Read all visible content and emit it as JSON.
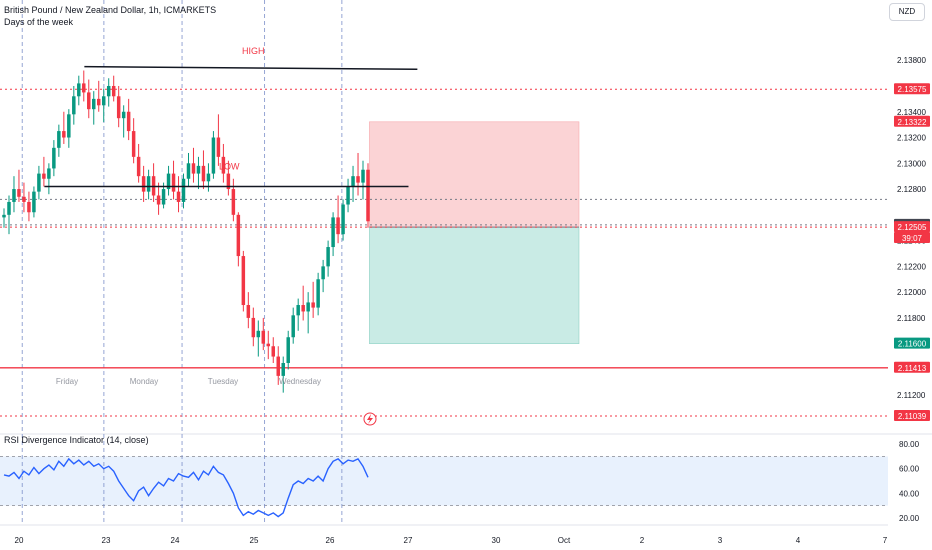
{
  "header": {
    "title": "British Pound / New Zealand Dollar, 1h, ICMARKETS",
    "subtitle": "Days of the week",
    "currency": "NZD"
  },
  "colors": {
    "up": "#089981",
    "down": "#f23645",
    "rsi": "#2962ff",
    "rsi_bg": "#e8f1fd",
    "stop_zone": "#fbd3d5",
    "target_zone": "#c9ebe5",
    "session": "#7c8fc9"
  },
  "chart_data": {
    "type": "candlestick",
    "ylim": [
      2.1093,
      2.1405
    ],
    "yticks": [
      "2.13800",
      "2.13400",
      "2.13200",
      "2.13000",
      "2.12800",
      "2.12400",
      "2.12200",
      "2.12000",
      "2.11800",
      "2.11200"
    ],
    "ytick_values": [
      2.138,
      2.134,
      2.132,
      2.13,
      2.128,
      2.124,
      2.122,
      2.12,
      2.118,
      2.112
    ],
    "xticks": [
      "20",
      "23",
      "24",
      "25",
      "26",
      "27",
      "30",
      "Oct",
      "2",
      "3",
      "4",
      "7"
    ],
    "day_labels": [
      "Friday",
      "Monday",
      "Tuesday",
      "Wednesday"
    ],
    "price_labels": [
      {
        "text": "2.13575",
        "value": 2.13575,
        "color": "#f23645"
      },
      {
        "text": "2.13322",
        "value": 2.13322,
        "color": "#f23645"
      },
      {
        "text": "2.12522",
        "value": 2.12522,
        "color": "#434651"
      },
      {
        "text": "2.12505",
        "value": 2.12505,
        "color": "#f23645"
      },
      {
        "text": "39:07",
        "value": 2.1242,
        "color": "#f23645"
      },
      {
        "text": "2.11600",
        "value": 2.116,
        "color": "#089981"
      },
      {
        "text": "2.11413",
        "value": 2.11413,
        "color": "#f23645"
      },
      {
        "text": "2.11039",
        "value": 2.11039,
        "color": "#f23645"
      }
    ],
    "horizontal_lines": [
      {
        "value": 2.13575,
        "style": "dotted",
        "color": "#f23645"
      },
      {
        "value": 2.11413,
        "style": "solid",
        "color": "#f23645"
      },
      {
        "value": 2.11039,
        "style": "dotted",
        "color": "#f23645"
      },
      {
        "value": 2.12522,
        "style": "dotted",
        "color": "#787b86"
      },
      {
        "value": 2.12505,
        "style": "dotted",
        "color": "#f23645"
      },
      {
        "value": 2.1272,
        "style": "dotted",
        "color": "#787b86"
      }
    ],
    "annotations": [
      {
        "text": "HIGH",
        "value": 2.1385,
        "color": "#f23645"
      },
      {
        "text": "LOW",
        "value": 2.1295,
        "color": "#f23645"
      }
    ],
    "trendlines": [
      {
        "x0": 0.095,
        "y0": 2.1375,
        "x1": 0.47,
        "y1": 2.1373
      },
      {
        "x0": 0.05,
        "y0": 2.1282,
        "x1": 0.46,
        "y1": 2.1282
      }
    ],
    "position": {
      "x0": 0.416,
      "x1": 0.652,
      "entry": 2.12505,
      "stop": 2.13322,
      "target": 2.116
    },
    "session_marks": [
      0.025,
      0.117,
      0.205,
      0.298,
      0.385
    ],
    "candles": [
      [
        2.1258,
        2.1265,
        2.125,
        2.126
      ],
      [
        2.126,
        2.1275,
        2.1245,
        2.127
      ],
      [
        2.127,
        2.129,
        2.1262,
        2.128
      ],
      [
        2.128,
        2.1295,
        2.127,
        2.1274
      ],
      [
        2.1274,
        2.1285,
        2.1262,
        2.127
      ],
      [
        2.127,
        2.1278,
        2.1255,
        2.1262
      ],
      [
        2.1262,
        2.1282,
        2.1258,
        2.1278
      ],
      [
        2.1278,
        2.1298,
        2.1272,
        2.1292
      ],
      [
        2.1292,
        2.1305,
        2.1282,
        2.1288
      ],
      [
        2.1288,
        2.13,
        2.1276,
        2.1296
      ],
      [
        2.1296,
        2.1318,
        2.129,
        2.1312
      ],
      [
        2.1312,
        2.133,
        2.1305,
        2.1325
      ],
      [
        2.1325,
        2.134,
        2.1315,
        2.132
      ],
      [
        2.132,
        2.1342,
        2.1312,
        2.1338
      ],
      [
        2.1338,
        2.136,
        2.133,
        2.1352
      ],
      [
        2.1352,
        2.1368,
        2.1345,
        2.1362
      ],
      [
        2.1362,
        2.1372,
        2.1348,
        2.1355
      ],
      [
        2.1355,
        2.1365,
        2.1335,
        2.1342
      ],
      [
        2.1342,
        2.1356,
        2.133,
        2.135
      ],
      [
        2.135,
        2.1364,
        2.134,
        2.1345
      ],
      [
        2.1345,
        2.1358,
        2.1332,
        2.1352
      ],
      [
        2.1352,
        2.1366,
        2.1344,
        2.136
      ],
      [
        2.136,
        2.1368,
        2.1348,
        2.1352
      ],
      [
        2.1352,
        2.136,
        2.1328,
        2.1335
      ],
      [
        2.1335,
        2.1345,
        2.132,
        2.134
      ],
      [
        2.134,
        2.135,
        2.1318,
        2.1325
      ],
      [
        2.1325,
        2.1335,
        2.13,
        2.1305
      ],
      [
        2.1305,
        2.1315,
        2.1285,
        2.129
      ],
      [
        2.129,
        2.1298,
        2.127,
        2.1278
      ],
      [
        2.1278,
        2.1295,
        2.1272,
        2.129
      ],
      [
        2.129,
        2.13,
        2.127,
        2.1275
      ],
      [
        2.1275,
        2.1285,
        2.126,
        2.1268
      ],
      [
        2.1268,
        2.1285,
        2.1265,
        2.128
      ],
      [
        2.128,
        2.1298,
        2.1275,
        2.1292
      ],
      [
        2.1292,
        2.1302,
        2.1272,
        2.1278
      ],
      [
        2.1278,
        2.129,
        2.1262,
        2.127
      ],
      [
        2.127,
        2.1292,
        2.1265,
        2.1288
      ],
      [
        2.1288,
        2.1308,
        2.1282,
        2.13
      ],
      [
        2.13,
        2.1312,
        2.1285,
        2.1292
      ],
      [
        2.1292,
        2.1305,
        2.128,
        2.1298
      ],
      [
        2.1298,
        2.131,
        2.128,
        2.1286
      ],
      [
        2.1286,
        2.13,
        2.1278,
        2.1292
      ],
      [
        2.1292,
        2.1325,
        2.1288,
        2.132
      ],
      [
        2.132,
        2.1338,
        2.1298,
        2.1305
      ],
      [
        2.1305,
        2.1315,
        2.1285,
        2.1292
      ],
      [
        2.1292,
        2.1302,
        2.1275,
        2.128
      ],
      [
        2.128,
        2.1288,
        2.1255,
        2.126
      ],
      [
        2.126,
        2.1262,
        2.122,
        2.1228
      ],
      [
        2.1228,
        2.1232,
        2.1185,
        2.119
      ],
      [
        2.119,
        2.12,
        2.1172,
        2.118
      ],
      [
        2.118,
        2.1188,
        2.1158,
        2.1165
      ],
      [
        2.1165,
        2.1178,
        2.115,
        2.117
      ],
      [
        2.117,
        2.118,
        2.1155,
        2.116
      ],
      [
        2.116,
        2.117,
        2.1148,
        2.1158
      ],
      [
        2.1158,
        2.1165,
        2.1145,
        2.115
      ],
      [
        2.115,
        2.1158,
        2.1128,
        2.1135
      ],
      [
        2.1135,
        2.115,
        2.1122,
        2.1145
      ],
      [
        2.1145,
        2.117,
        2.114,
        2.1165
      ],
      [
        2.1165,
        2.1188,
        2.116,
        2.1182
      ],
      [
        2.1182,
        2.1195,
        2.117,
        2.119
      ],
      [
        2.119,
        2.1205,
        2.1178,
        2.1185
      ],
      [
        2.1185,
        2.12,
        2.1168,
        2.1192
      ],
      [
        2.1192,
        2.1208,
        2.118,
        2.1188
      ],
      [
        2.1188,
        2.1215,
        2.1182,
        2.121
      ],
      [
        2.121,
        2.1225,
        2.12,
        2.122
      ],
      [
        2.122,
        2.124,
        2.1212,
        2.1235
      ],
      [
        2.1235,
        2.1262,
        2.1228,
        2.1258
      ],
      [
        2.1258,
        2.1275,
        2.1238,
        2.1245
      ],
      [
        2.1245,
        2.1272,
        2.124,
        2.1268
      ],
      [
        2.1268,
        2.1288,
        2.1262,
        2.1282
      ],
      [
        2.1282,
        2.1298,
        2.127,
        2.129
      ],
      [
        2.129,
        2.1308,
        2.1275,
        2.1285
      ],
      [
        2.1285,
        2.1302,
        2.1272,
        2.1295
      ],
      [
        2.1295,
        2.13,
        2.125,
        2.1255
      ]
    ],
    "rsi": {
      "title": "RSI Divergence Indicator (14, close)",
      "ylim": [
        15,
        85
      ],
      "yticks": [
        "80.00",
        "60.00",
        "40.00",
        "20.00"
      ],
      "ytick_values": [
        80,
        60,
        40,
        20
      ],
      "levels": [
        70,
        30
      ],
      "values": [
        55,
        54,
        57,
        52,
        58,
        55,
        61,
        56,
        60,
        63,
        59,
        66,
        62,
        68,
        64,
        67,
        63,
        66,
        62,
        64,
        60,
        62,
        58,
        50,
        44,
        38,
        34,
        42,
        45,
        38,
        44,
        49,
        46,
        52,
        50,
        56,
        54,
        53,
        57,
        51,
        58,
        55,
        62,
        57,
        55,
        48,
        40,
        28,
        22,
        25,
        23,
        26,
        24,
        22,
        24,
        21,
        24,
        36,
        47,
        50,
        48,
        52,
        50,
        54,
        50,
        60,
        66,
        68,
        64,
        67,
        66,
        68,
        62,
        53
      ]
    }
  }
}
